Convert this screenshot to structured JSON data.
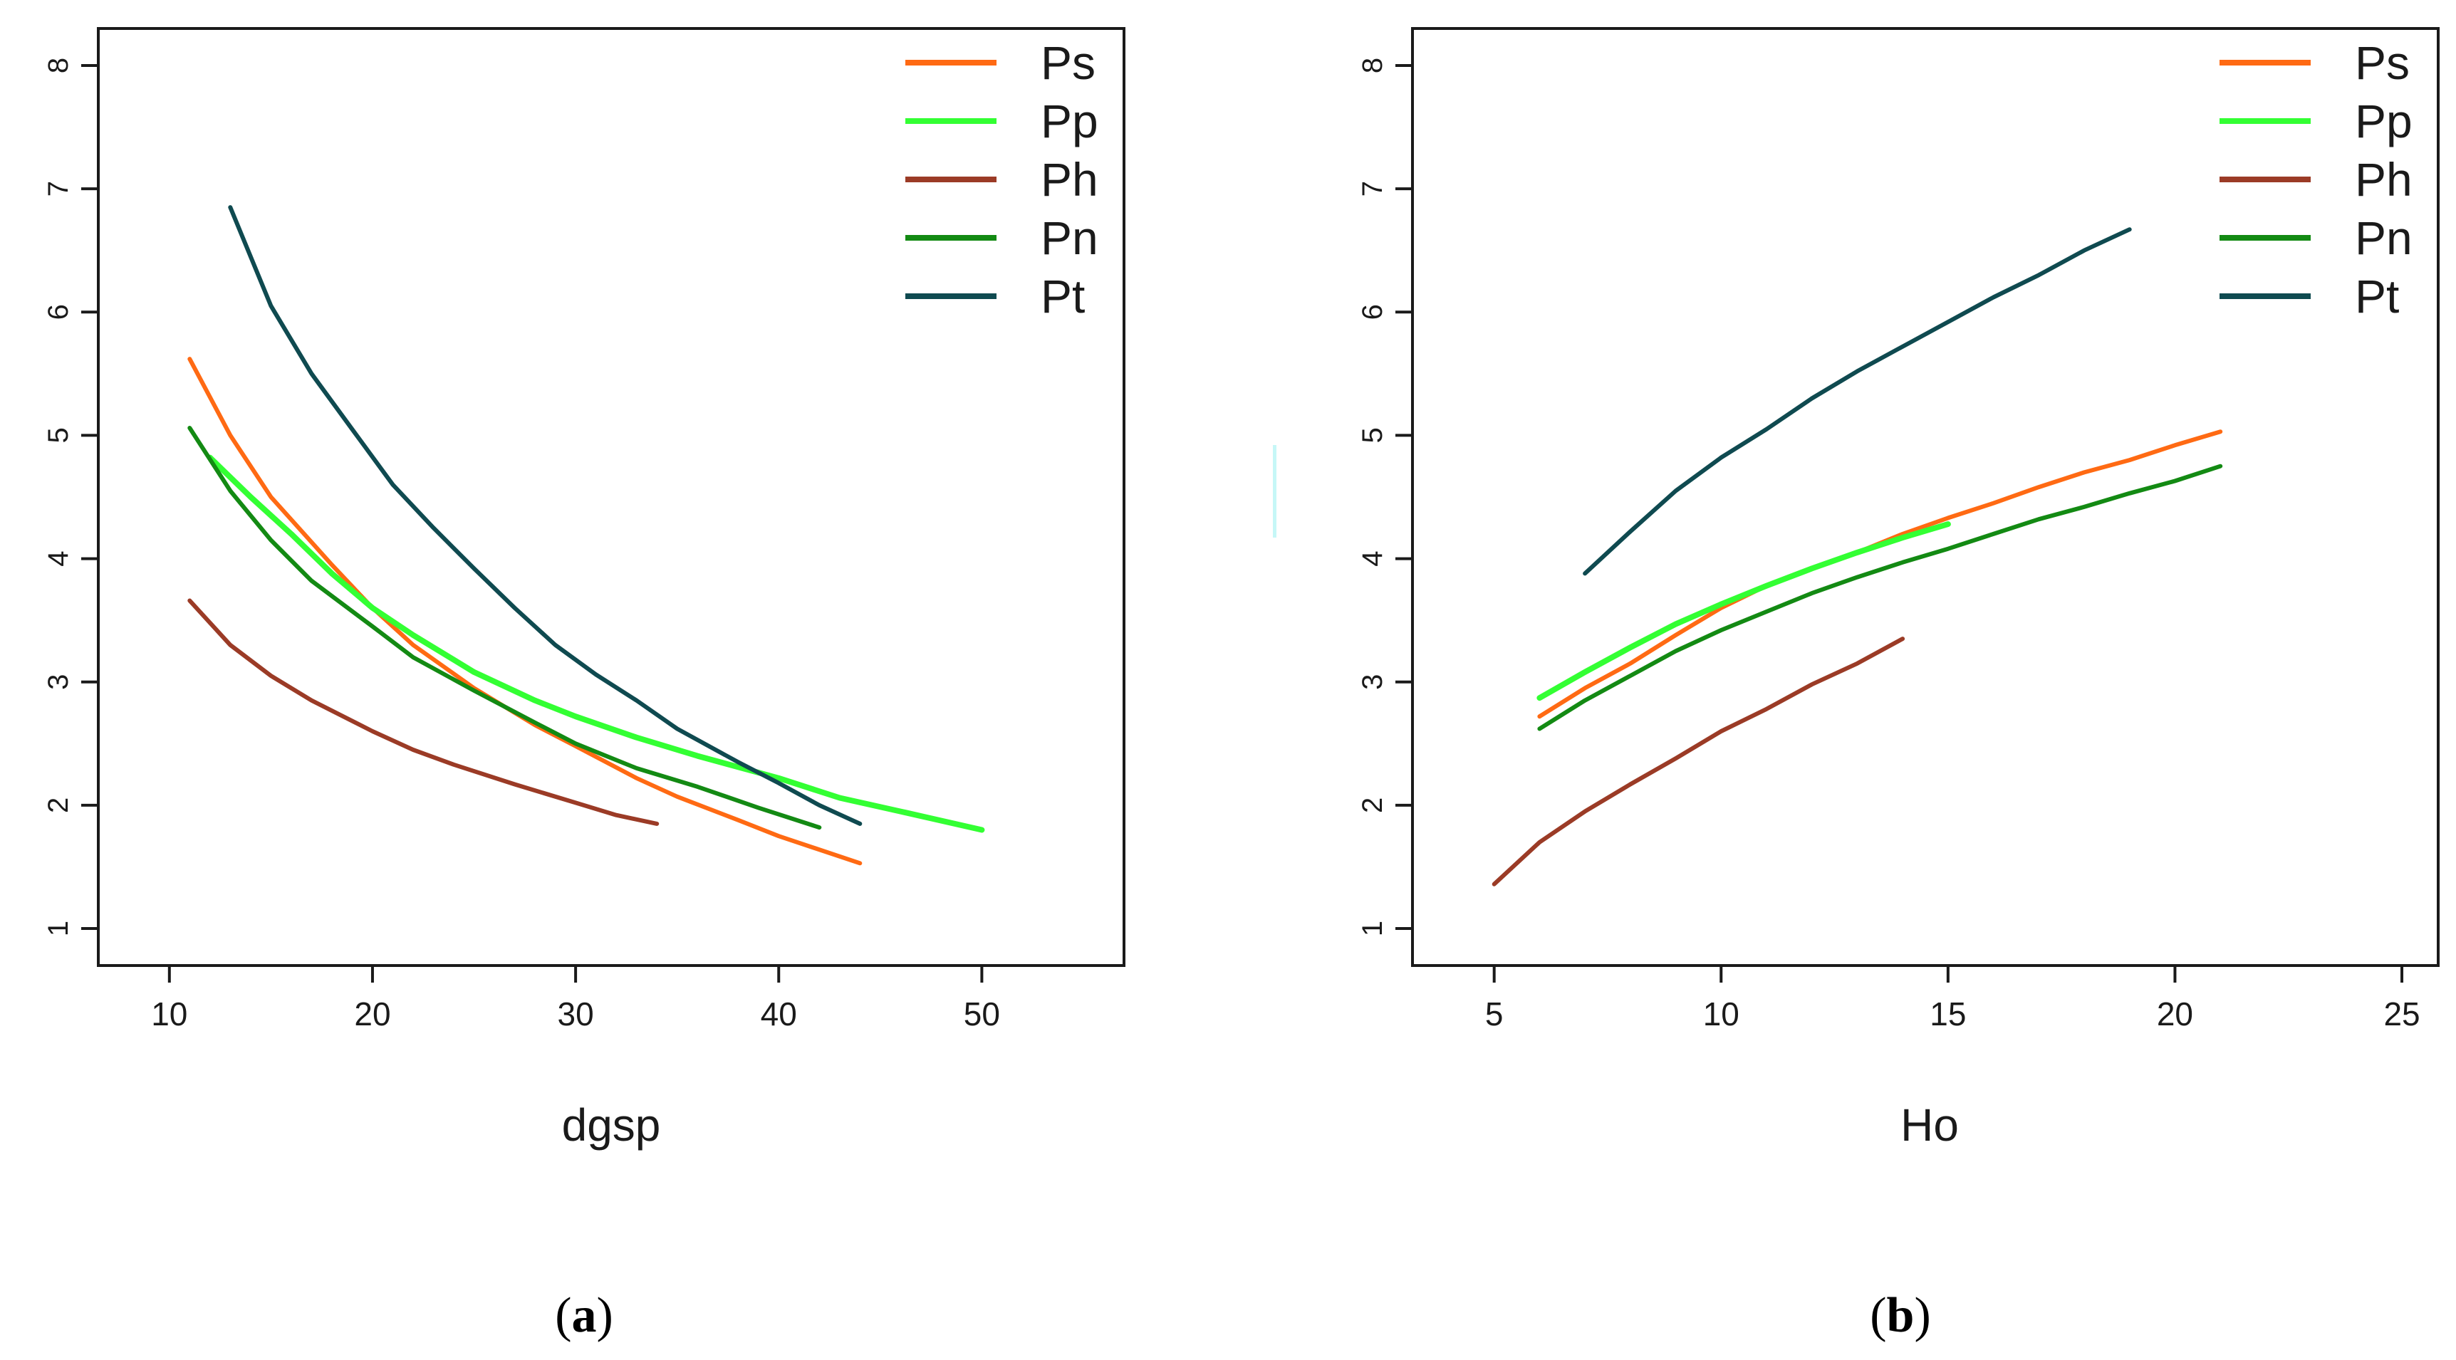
{
  "chart_data": [
    {
      "type": "line",
      "panel_label": "a",
      "title": "",
      "xlabel": "dgsp",
      "ylabel": "",
      "xlim": [
        6.5,
        57
      ],
      "ylim": [
        0.7,
        8.3
      ],
      "x_ticks": [
        "10",
        "20",
        "30",
        "40",
        "50"
      ],
      "y_ticks": [
        "1",
        "2",
        "3",
        "4",
        "5",
        "6",
        "7",
        "8"
      ],
      "legend_position": "top-right",
      "series": [
        {
          "name": "Ps",
          "color": "#ff6a13",
          "x": [
            11,
            13,
            15,
            18,
            20,
            22,
            25,
            28,
            30,
            33,
            35,
            38,
            40,
            44
          ],
          "y": [
            5.62,
            5.0,
            4.5,
            3.95,
            3.6,
            3.3,
            2.95,
            2.65,
            2.48,
            2.22,
            2.07,
            1.88,
            1.75,
            1.53
          ]
        },
        {
          "name": "Pp",
          "color": "#33ff33",
          "x": [
            12,
            14,
            16,
            18,
            20,
            22,
            25,
            28,
            30,
            33,
            36,
            40,
            43,
            46,
            50
          ],
          "y": [
            4.82,
            4.5,
            4.2,
            3.88,
            3.6,
            3.38,
            3.08,
            2.85,
            2.72,
            2.55,
            2.4,
            2.22,
            2.06,
            1.95,
            1.8
          ]
        },
        {
          "name": "Ph",
          "color": "#9b3b26",
          "x": [
            11,
            13,
            15,
            17,
            20,
            22,
            24,
            27,
            30,
            32,
            34
          ],
          "y": [
            3.66,
            3.3,
            3.05,
            2.85,
            2.6,
            2.45,
            2.33,
            2.17,
            2.02,
            1.92,
            1.85
          ]
        },
        {
          "name": "Pn",
          "color": "#138a13",
          "x": [
            11,
            13,
            15,
            17,
            20,
            22,
            25,
            28,
            30,
            33,
            36,
            39,
            42
          ],
          "y": [
            5.06,
            4.55,
            4.15,
            3.82,
            3.45,
            3.2,
            2.93,
            2.67,
            2.5,
            2.3,
            2.15,
            1.98,
            1.82
          ]
        },
        {
          "name": "Pt",
          "color": "#0f4a50",
          "x": [
            13,
            15,
            17,
            19,
            21,
            23,
            25,
            27,
            29,
            31,
            33,
            35,
            38,
            40,
            42,
            44
          ],
          "y": [
            6.85,
            6.05,
            5.5,
            5.05,
            4.6,
            4.25,
            3.92,
            3.6,
            3.3,
            3.06,
            2.85,
            2.62,
            2.35,
            2.18,
            2.0,
            1.85
          ]
        }
      ]
    },
    {
      "type": "line",
      "panel_label": "b",
      "title": "",
      "xlabel": "Ho",
      "ylabel": "",
      "xlim": [
        3.2,
        25.8
      ],
      "ylim": [
        0.7,
        8.3
      ],
      "x_ticks": [
        "5",
        "10",
        "15",
        "20",
        "25"
      ],
      "y_ticks": [
        "1",
        "2",
        "3",
        "4",
        "5",
        "6",
        "7",
        "8"
      ],
      "legend_position": "top-right",
      "series": [
        {
          "name": "Ps",
          "color": "#ff6a13",
          "x": [
            6,
            7,
            8,
            9,
            10,
            11,
            12,
            13,
            14,
            15,
            16,
            17,
            18,
            19,
            20,
            21
          ],
          "y": [
            2.72,
            2.95,
            3.15,
            3.38,
            3.6,
            3.78,
            3.92,
            4.05,
            4.2,
            4.33,
            4.45,
            4.58,
            4.7,
            4.8,
            4.92,
            5.03
          ]
        },
        {
          "name": "Pp",
          "color": "#33ff33",
          "x": [
            6,
            7,
            8,
            9,
            10,
            11,
            12,
            13,
            14,
            15
          ],
          "y": [
            2.87,
            3.08,
            3.28,
            3.47,
            3.63,
            3.78,
            3.92,
            4.05,
            4.17,
            4.28
          ]
        },
        {
          "name": "Ph",
          "color": "#9b3b26",
          "x": [
            5,
            6,
            7,
            8,
            9,
            10,
            11,
            12,
            13,
            14
          ],
          "y": [
            1.36,
            1.7,
            1.95,
            2.17,
            2.38,
            2.6,
            2.78,
            2.98,
            3.15,
            3.35
          ]
        },
        {
          "name": "Pn",
          "color": "#138a13",
          "x": [
            6,
            7,
            8,
            9,
            10,
            11,
            12,
            13,
            14,
            15,
            16,
            17,
            18,
            19,
            20,
            21
          ],
          "y": [
            2.62,
            2.85,
            3.05,
            3.25,
            3.42,
            3.57,
            3.72,
            3.85,
            3.97,
            4.08,
            4.2,
            4.32,
            4.42,
            4.53,
            4.63,
            4.75
          ]
        },
        {
          "name": "Pt",
          "color": "#0f4a50",
          "x": [
            7,
            8,
            9,
            10,
            11,
            12,
            13,
            14,
            15,
            16,
            17,
            18,
            19
          ],
          "y": [
            3.88,
            4.22,
            4.55,
            4.82,
            5.05,
            5.3,
            5.52,
            5.72,
            5.92,
            6.12,
            6.3,
            6.5,
            6.67
          ]
        }
      ]
    }
  ],
  "captions": [
    "a",
    "b"
  ]
}
